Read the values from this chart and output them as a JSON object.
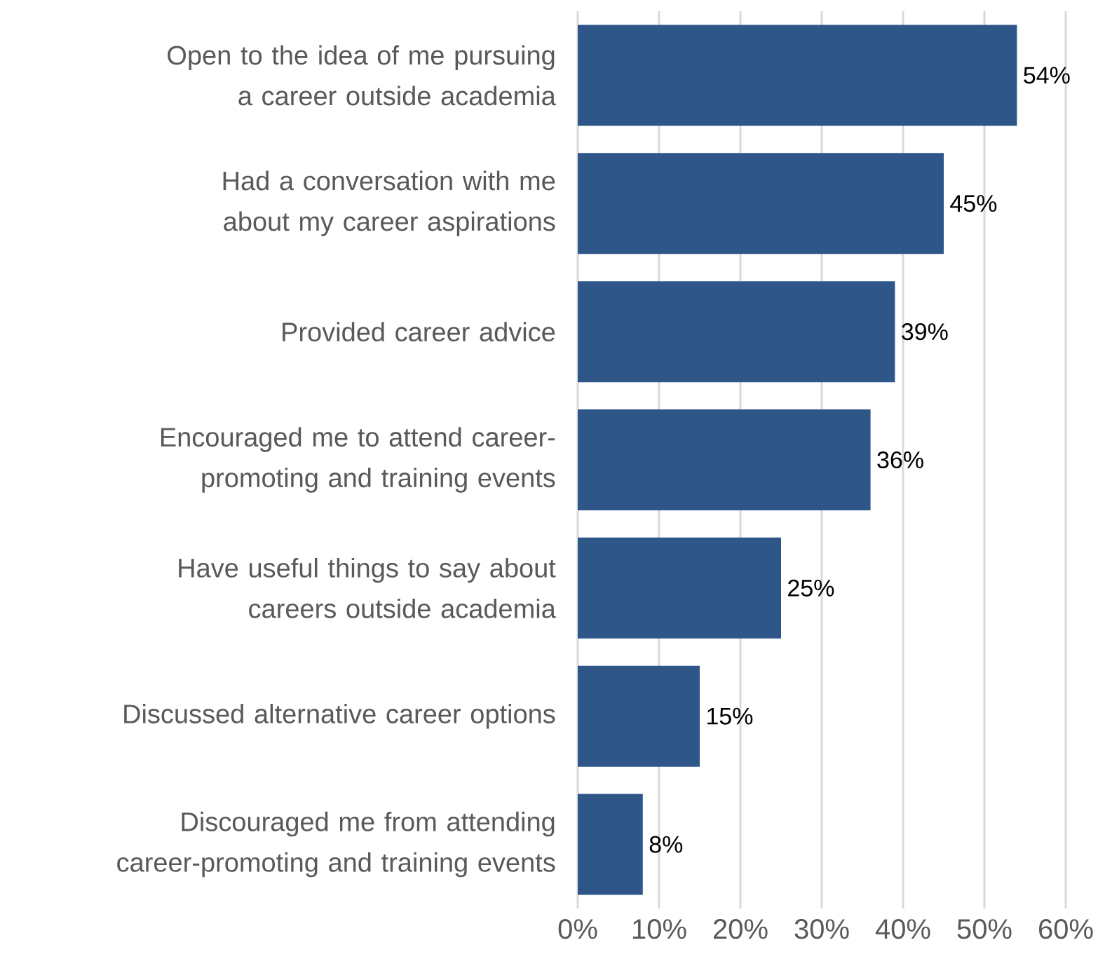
{
  "chart_data": {
    "type": "bar",
    "orientation": "horizontal",
    "categories": [
      "Open to the idea of me pursuing a career outside academia",
      "Had a conversation with me about my career aspirations",
      "Provided career advice",
      "Encouraged me to attend career-promoting and training events",
      "Have useful things to say about careers outside academia",
      "Discussed alternative career options",
      "Discouraged me from attending career-promoting and training events"
    ],
    "values": [
      54,
      45,
      39,
      36,
      25,
      15,
      8
    ],
    "value_labels": [
      "54%",
      "45%",
      "39%",
      "36%",
      "25%",
      "15%",
      "8%"
    ],
    "color": "#2e5689",
    "xlim": [
      0,
      60
    ],
    "xticks": [
      {
        "value": 0,
        "label": "0%"
      },
      {
        "value": 10,
        "label": "10%"
      },
      {
        "value": 20,
        "label": "20%"
      },
      {
        "value": 30,
        "label": "30%"
      },
      {
        "value": 40,
        "label": "40%"
      },
      {
        "value": 50,
        "label": "50%"
      },
      {
        "value": 60,
        "label": "60%"
      }
    ],
    "grid": "x"
  }
}
